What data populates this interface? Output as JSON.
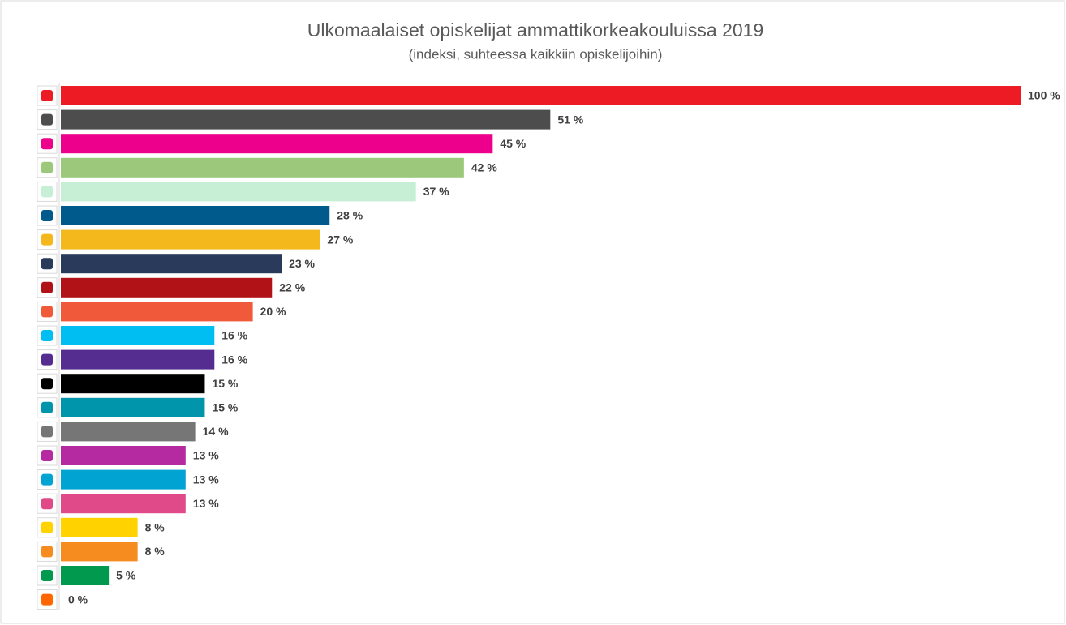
{
  "chart_data": {
    "type": "bar",
    "orientation": "horizontal",
    "title": "Ulkomaalaiset opiskelijat ammattikorkeakouluissa 2019",
    "subtitle": "(indeksi, suhteessa kaikkiin opiskelijoihin)",
    "categories": [
      null,
      null,
      null,
      null,
      null,
      null,
      null,
      null,
      null,
      null,
      null,
      null,
      null,
      null,
      null,
      null,
      null,
      null,
      null,
      null,
      null,
      null
    ],
    "values": [
      100,
      51,
      45,
      42,
      37,
      28,
      27,
      23,
      22,
      20,
      16,
      16,
      15,
      15,
      14,
      13,
      13,
      13,
      8,
      8,
      5,
      0
    ],
    "value_labels": [
      "100 %",
      "51 %",
      "45 %",
      "42 %",
      "37 %",
      "28 %",
      "27 %",
      "23 %",
      "22 %",
      "20 %",
      "16 %",
      "16 %",
      "15 %",
      "15 %",
      "14 %",
      "13 %",
      "13 %",
      "13 %",
      "8 %",
      "8 %",
      "5 %",
      "0 %"
    ],
    "colors": [
      "#ed1c24",
      "#4d4d4d",
      "#ec008c",
      "#9bc87b",
      "#c6efd6",
      "#005a8c",
      "#f5b81c",
      "#2a3a5a",
      "#b01217",
      "#f05a3a",
      "#00bef2",
      "#552d90",
      "#000000",
      "#0095aa",
      "#767676",
      "#b52aa0",
      "#00a3d2",
      "#e04a88",
      "#ffd200",
      "#f68b1f",
      "#00994d",
      "#ff6600"
    ],
    "xlim": [
      0,
      100
    ]
  }
}
